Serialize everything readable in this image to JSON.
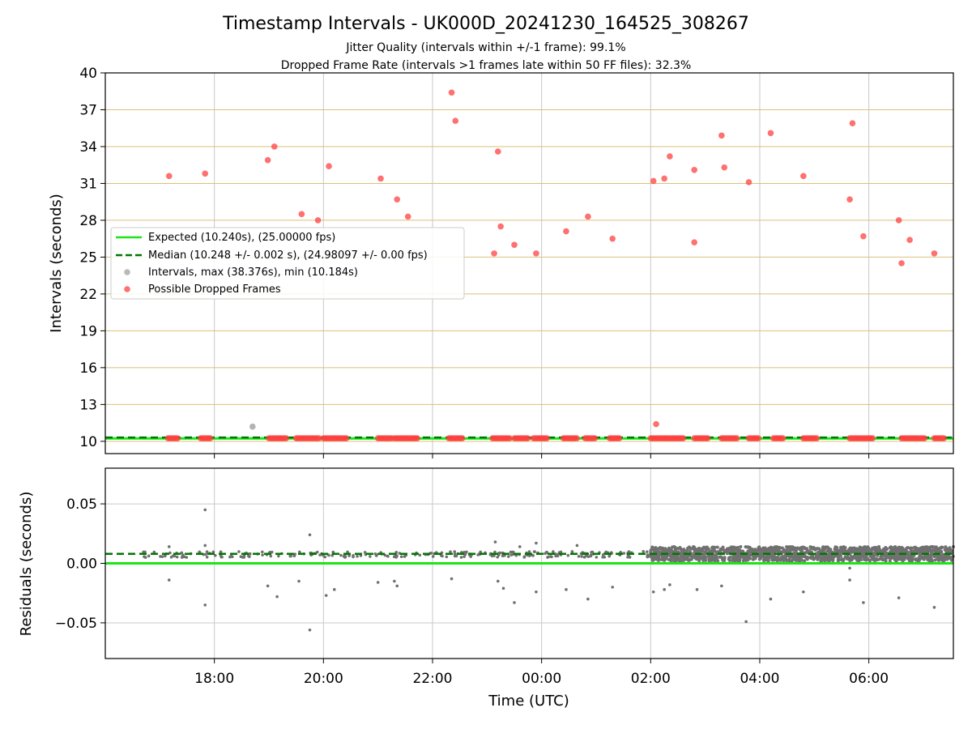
{
  "chart_data": [
    {
      "type": "scatter",
      "title": "Timestamp Intervals - UK000D_20241230_164525_308267",
      "subtitle_lines": [
        "Jitter Quality (intervals within +/-1 frame): 99.1%",
        "Dropped Frame Rate (intervals >1 frames late within 50 FF files): 32.3%"
      ],
      "xlabel": "",
      "ylabel": "Intervals (seconds)",
      "x_unit": "hours (UTC) since 16:00 on the start date",
      "xlim": [
        0.0,
        15.55
      ],
      "ylim": [
        9,
        40
      ],
      "y_ticks": [
        "10",
        "13",
        "16",
        "19",
        "22",
        "25",
        "28",
        "31",
        "34",
        "37",
        "40"
      ],
      "y_tick_values": [
        10,
        13,
        16,
        19,
        22,
        25,
        28,
        31,
        34,
        37,
        40
      ],
      "grid": true,
      "legend": {
        "placement": "center-left",
        "entries": [
          "Expected (10.240s), (25.00000 fps)",
          "Median (10.248 +/- 0.002 s), (24.98097 +/- 0.00 fps)",
          "Intervals, max (38.376s), min (10.184s)",
          "Possible Dropped Frames"
        ]
      },
      "expected_interval": 10.24,
      "median_interval": 10.248,
      "series": [
        {
          "name": "Possible Dropped Frames",
          "color": "#ff4040",
          "points": [
            [
              1.17,
              31.6
            ],
            [
              1.83,
              31.8
            ],
            [
              2.98,
              32.9
            ],
            [
              3.1,
              34.0
            ],
            [
              3.6,
              28.5
            ],
            [
              3.9,
              28.0
            ],
            [
              4.1,
              32.4
            ],
            [
              5.05,
              31.4
            ],
            [
              5.35,
              29.7
            ],
            [
              5.55,
              28.3
            ],
            [
              6.35,
              38.4
            ],
            [
              6.42,
              36.1
            ],
            [
              7.2,
              33.6
            ],
            [
              7.25,
              27.5
            ],
            [
              7.13,
              25.3
            ],
            [
              7.5,
              26.0
            ],
            [
              7.9,
              25.3
            ],
            [
              8.45,
              27.1
            ],
            [
              8.85,
              28.3
            ],
            [
              9.3,
              26.5
            ],
            [
              10.05,
              31.2
            ],
            [
              10.25,
              31.4
            ],
            [
              10.35,
              33.2
            ],
            [
              10.1,
              11.4
            ],
            [
              10.8,
              32.1
            ],
            [
              10.8,
              26.2
            ],
            [
              11.3,
              34.9
            ],
            [
              11.35,
              32.3
            ],
            [
              11.8,
              31.1
            ],
            [
              12.2,
              35.1
            ],
            [
              12.8,
              31.6
            ],
            [
              13.7,
              35.9
            ],
            [
              13.65,
              29.7
            ],
            [
              13.9,
              26.7
            ],
            [
              14.55,
              28.0
            ],
            [
              14.6,
              24.5
            ],
            [
              14.75,
              26.4
            ],
            [
              15.2,
              25.3
            ]
          ],
          "clusters_near_10": [
            [
              1.15,
              1.35
            ],
            [
              1.75,
              1.95
            ],
            [
              3.0,
              3.35
            ],
            [
              3.5,
              3.95
            ],
            [
              4.0,
              4.45
            ],
            [
              5.0,
              5.25
            ],
            [
              5.3,
              5.75
            ],
            [
              6.3,
              6.55
            ],
            [
              7.1,
              7.45
            ],
            [
              7.5,
              7.75
            ],
            [
              7.85,
              8.1
            ],
            [
              8.4,
              8.65
            ],
            [
              8.8,
              9.0
            ],
            [
              9.25,
              9.45
            ],
            [
              10.0,
              10.6
            ],
            [
              10.8,
              11.05
            ],
            [
              11.3,
              11.6
            ],
            [
              11.8,
              12.0
            ],
            [
              12.25,
              12.45
            ],
            [
              12.8,
              13.05
            ],
            [
              13.65,
              14.1
            ],
            [
              14.6,
              15.05
            ],
            [
              15.2,
              15.4
            ]
          ]
        },
        {
          "name": "Intervals, max (38.376s), min (10.184s)",
          "color": "#808080",
          "points": [
            [
              2.7,
              11.2
            ]
          ],
          "band_range": [
            0.7,
            15.55
          ]
        }
      ]
    },
    {
      "type": "scatter",
      "title": "",
      "xlabel": "Time (UTC)",
      "ylabel": "Residuals (seconds)",
      "xlim": [
        0.0,
        15.55
      ],
      "ylim": [
        -0.08,
        0.08
      ],
      "x_ticks": [
        "18:00",
        "20:00",
        "22:00",
        "00:00",
        "02:00",
        "04:00",
        "06:00"
      ],
      "x_tick_values": [
        2,
        4,
        6,
        8,
        10,
        12,
        14
      ],
      "y_ticks": [
        "−0.05",
        "0.00",
        "0.05"
      ],
      "y_tick_values": [
        -0.05,
        0.0,
        0.05
      ],
      "grid": true,
      "expected_residual": 0.0,
      "median_residual": 0.008,
      "series": [
        {
          "name": "Residuals",
          "color": "#707070",
          "outliers": [
            [
              1.17,
              0.014
            ],
            [
              1.17,
              -0.014
            ],
            [
              1.83,
              0.015
            ],
            [
              1.83,
              0.045
            ],
            [
              1.83,
              -0.035
            ],
            [
              2.98,
              -0.019
            ],
            [
              3.15,
              -0.028
            ],
            [
              3.55,
              -0.015
            ],
            [
              3.75,
              0.024
            ],
            [
              3.75,
              -0.056
            ],
            [
              4.05,
              -0.027
            ],
            [
              4.2,
              -0.022
            ],
            [
              5.0,
              -0.016
            ],
            [
              5.3,
              -0.015
            ],
            [
              5.35,
              -0.019
            ],
            [
              6.35,
              -0.013
            ],
            [
              7.15,
              0.018
            ],
            [
              7.2,
              -0.015
            ],
            [
              7.3,
              -0.021
            ],
            [
              7.5,
              -0.033
            ],
            [
              7.6,
              0.014
            ],
            [
              7.9,
              0.017
            ],
            [
              7.9,
              -0.024
            ],
            [
              8.45,
              -0.022
            ],
            [
              8.65,
              0.015
            ],
            [
              8.85,
              -0.03
            ],
            [
              9.3,
              -0.02
            ],
            [
              10.05,
              -0.024
            ],
            [
              10.25,
              -0.022
            ],
            [
              10.35,
              -0.018
            ],
            [
              10.85,
              -0.022
            ],
            [
              11.3,
              -0.019
            ],
            [
              11.75,
              -0.049
            ],
            [
              12.2,
              -0.03
            ],
            [
              12.8,
              -0.024
            ],
            [
              13.65,
              -0.004
            ],
            [
              13.65,
              -0.014
            ],
            [
              13.9,
              -0.033
            ],
            [
              14.55,
              -0.029
            ],
            [
              15.2,
              -0.037
            ]
          ],
          "dense_band": {
            "x_range": [
              10.0,
              15.55
            ],
            "y_range": [
              0.002,
              0.014
            ]
          },
          "sparse_band": {
            "x_range": [
              0.7,
              10.0
            ],
            "y_range": [
              0.005,
              0.01
            ]
          }
        }
      ]
    }
  ],
  "colors": {
    "expected": "#19e619",
    "median": "#007700",
    "dropped": "#ff4040",
    "intervals": "#808080",
    "hgrid_top": "#d9c07a",
    "grid": "#c8c8c8"
  }
}
